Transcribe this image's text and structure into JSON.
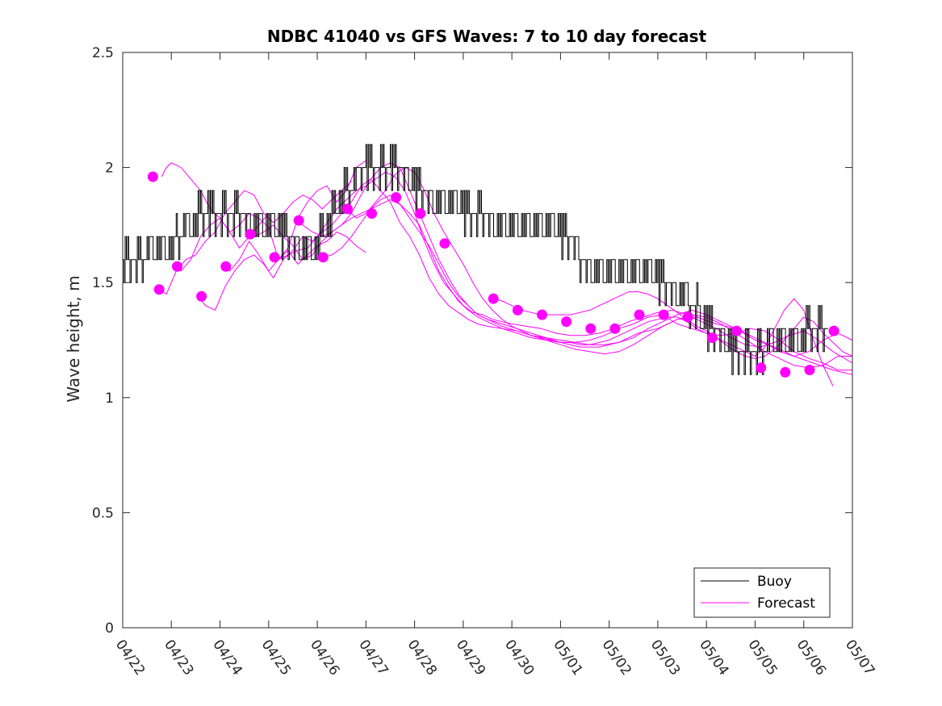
{
  "chart_data": {
    "type": "line",
    "title": "NDBC 41040 vs GFS Waves: 7 to 10 day forecast",
    "xlabel": "",
    "ylabel": "Wave height, m",
    "ylim": [
      0,
      2.5
    ],
    "yticks": [
      "0",
      "0.5",
      "1",
      "1.5",
      "2",
      "2.5"
    ],
    "xlim": [
      "04/22",
      "05/07"
    ],
    "xticks": [
      "04/22",
      "04/23",
      "04/24",
      "04/25",
      "04/26",
      "04/27",
      "04/28",
      "04/29",
      "04/30",
      "05/01",
      "05/02",
      "05/03",
      "05/04",
      "05/05",
      "05/06",
      "05/07"
    ],
    "x_unit": "days from 04/22 00:00",
    "grid": false,
    "legend_position": "bottom-right",
    "legend": [
      "Buoy",
      "Forecast"
    ],
    "colors": {
      "buoy": "#000000",
      "forecast": "#ff00ff",
      "axes": "#262626"
    },
    "buoy": {
      "name": "Buoy",
      "x": [
        0.0,
        0.25,
        0.5,
        0.75,
        1.0,
        1.25,
        1.5,
        1.75,
        2.0,
        2.25,
        2.5,
        2.75,
        3.0,
        3.25,
        3.5,
        3.75,
        4.0,
        4.25,
        4.5,
        4.75,
        5.0,
        5.25,
        5.5,
        5.75,
        6.0,
        6.25,
        6.5,
        6.75,
        7.0,
        7.25,
        7.5,
        7.75,
        8.0,
        8.25,
        8.5,
        8.75,
        9.0,
        9.25,
        9.5,
        9.75,
        10.0,
        10.25,
        10.5,
        10.75,
        11.0,
        11.25,
        11.5,
        11.75,
        12.0,
        12.25,
        12.5,
        12.75,
        13.0,
        13.25,
        13.5,
        13.75,
        14.0,
        14.25,
        14.5
      ],
      "y": [
        1.55,
        1.58,
        1.6,
        1.6,
        1.62,
        1.7,
        1.75,
        1.8,
        1.75,
        1.75,
        1.75,
        1.7,
        1.7,
        1.7,
        1.65,
        1.62,
        1.65,
        1.75,
        1.85,
        1.9,
        2.0,
        1.95,
        2.0,
        1.95,
        1.9,
        1.85,
        1.8,
        1.85,
        1.8,
        1.78,
        1.75,
        1.72,
        1.72,
        1.75,
        1.72,
        1.7,
        1.7,
        1.65,
        1.55,
        1.52,
        1.55,
        1.52,
        1.5,
        1.5,
        1.5,
        1.45,
        1.42,
        1.38,
        1.3,
        1.25,
        1.2,
        1.15,
        1.17,
        1.2,
        1.25,
        1.23,
        1.25,
        1.25,
        1.25
      ]
    },
    "forecast_runs": [
      {
        "x": [
          0.8,
          0.9,
          1.0,
          1.2,
          1.4,
          1.6,
          1.8,
          2.0,
          2.2,
          2.4,
          2.6,
          2.8,
          3.0
        ],
        "y": [
          1.96,
          2.0,
          2.02,
          2.0,
          1.95,
          1.9,
          1.82,
          1.78,
          1.72,
          1.65,
          1.7,
          1.75,
          1.8
        ]
      },
      {
        "x": [
          0.75,
          0.9,
          1.1,
          1.3,
          1.5,
          1.7,
          1.9,
          2.1,
          2.3,
          2.5,
          2.7,
          2.9,
          3.1,
          3.3,
          3.5,
          3.7,
          3.9,
          4.1,
          4.3,
          4.5,
          4.7
        ],
        "y": [
          1.47,
          1.45,
          1.55,
          1.6,
          1.62,
          1.68,
          1.72,
          1.8,
          1.85,
          1.9,
          1.88,
          1.8,
          1.76,
          1.8,
          1.85,
          1.88,
          1.86,
          1.82,
          1.86,
          1.9,
          1.94
        ]
      },
      {
        "x": [
          1.05,
          1.2,
          1.4,
          1.6,
          1.8,
          2.0,
          2.2,
          2.4,
          2.6,
          2.8,
          3.0,
          3.2,
          3.4,
          3.6,
          3.8,
          4.0,
          4.2,
          4.4,
          4.6,
          4.8,
          5.0
        ],
        "y": [
          1.57,
          1.55,
          1.6,
          1.7,
          1.75,
          1.78,
          1.72,
          1.75,
          1.8,
          1.78,
          1.74,
          1.6,
          1.65,
          1.78,
          1.85,
          1.9,
          1.92,
          1.85,
          1.9,
          2.0,
          2.03
        ]
      },
      {
        "x": [
          1.55,
          1.7,
          1.9,
          2.1,
          2.3,
          2.5,
          2.7,
          2.9,
          3.1,
          3.3,
          3.5,
          3.7,
          3.9,
          4.1,
          4.3,
          4.5,
          4.7,
          4.9,
          5.1,
          5.3,
          5.5,
          5.7,
          5.9,
          6.1,
          6.3,
          6.5,
          6.7,
          6.9,
          7.1,
          7.3,
          7.5,
          7.8,
          8.1,
          8.4,
          8.7,
          9.0,
          9.4,
          9.8,
          10.2,
          10.6,
          11.0,
          11.4,
          11.8,
          12.2,
          12.6,
          13.0,
          13.4,
          13.8,
          14.2,
          14.6,
          15.0
        ],
        "y": [
          1.44,
          1.4,
          1.38,
          1.48,
          1.55,
          1.6,
          1.62,
          1.58,
          1.52,
          1.6,
          1.64,
          1.7,
          1.68,
          1.72,
          1.75,
          1.8,
          1.85,
          1.92,
          1.95,
          1.9,
          1.85,
          1.76,
          1.7,
          1.62,
          1.52,
          1.45,
          1.4,
          1.37,
          1.34,
          1.32,
          1.31,
          1.3,
          1.29,
          1.27,
          1.26,
          1.24,
          1.22,
          1.22,
          1.24,
          1.28,
          1.3,
          1.34,
          1.35,
          1.32,
          1.3,
          1.25,
          1.22,
          1.18,
          1.15,
          1.12,
          1.1
        ]
      },
      {
        "x": [
          2.05,
          2.2,
          2.4,
          2.6,
          2.8,
          3.0,
          3.2,
          3.4,
          3.6,
          3.8,
          4.0,
          4.2,
          4.4,
          4.6,
          4.8,
          5.0
        ],
        "y": [
          1.57,
          1.55,
          1.6,
          1.68,
          1.62,
          1.55,
          1.6,
          1.64,
          1.58,
          1.62,
          1.66,
          1.68,
          1.72,
          1.7,
          1.66,
          1.63
        ]
      },
      {
        "x": [
          2.55,
          2.7,
          2.9,
          3.1,
          3.3,
          3.5,
          3.7,
          3.9,
          4.1,
          4.3,
          4.5,
          4.7,
          4.9,
          5.1,
          5.3,
          5.5,
          5.7,
          5.9,
          6.1,
          6.3,
          6.5,
          6.7,
          6.9,
          7.1,
          7.3,
          7.5,
          7.8,
          8.1,
          8.4,
          8.7,
          9.0,
          9.3,
          9.6,
          9.9,
          10.2,
          10.5,
          10.8,
          11.1,
          11.4,
          11.7,
          12.0,
          12.3,
          12.6,
          12.9,
          13.2,
          13.5,
          13.8,
          14.1,
          14.4,
          14.7,
          15.0
        ],
        "y": [
          1.71,
          1.7,
          1.72,
          1.75,
          1.7,
          1.66,
          1.6,
          1.62,
          1.68,
          1.72,
          1.75,
          1.78,
          1.8,
          1.82,
          1.84,
          1.86,
          1.84,
          1.8,
          1.75,
          1.65,
          1.55,
          1.48,
          1.42,
          1.38,
          1.35,
          1.33,
          1.3,
          1.28,
          1.26,
          1.25,
          1.24,
          1.24,
          1.25,
          1.27,
          1.3,
          1.32,
          1.35,
          1.36,
          1.32,
          1.3,
          1.28,
          1.27,
          1.28,
          1.3,
          1.29,
          1.25,
          1.2,
          1.17,
          1.15,
          1.12,
          1.12
        ]
      },
      {
        "x": [
          3.05,
          3.2,
          3.4,
          3.6,
          3.8,
          4.0,
          4.2,
          4.4,
          4.6,
          4.8,
          5.0,
          5.2,
          5.4,
          5.6,
          5.8,
          6.0,
          6.2,
          6.4,
          6.6,
          6.8,
          7.0,
          7.2,
          7.4,
          7.6,
          7.8,
          8.0,
          8.3,
          8.6,
          8.9,
          9.2,
          9.5,
          9.8,
          10.1,
          10.4,
          10.7,
          11.0,
          11.3,
          11.6,
          11.9,
          12.2,
          12.5,
          12.8,
          13.1,
          13.4,
          13.7,
          14.0,
          14.3,
          14.6,
          15.0
        ],
        "y": [
          1.61,
          1.6,
          1.62,
          1.64,
          1.65,
          1.7,
          1.76,
          1.82,
          1.86,
          1.9,
          1.92,
          1.95,
          1.98,
          1.96,
          1.9,
          1.8,
          1.68,
          1.58,
          1.5,
          1.45,
          1.4,
          1.37,
          1.36,
          1.34,
          1.33,
          1.32,
          1.31,
          1.3,
          1.28,
          1.27,
          1.27,
          1.28,
          1.3,
          1.33,
          1.35,
          1.37,
          1.38,
          1.36,
          1.33,
          1.3,
          1.26,
          1.23,
          1.22,
          1.24,
          1.27,
          1.29,
          1.25,
          1.2,
          1.15
        ]
      },
      {
        "x": [
          3.55,
          3.7,
          3.9,
          4.1,
          4.3,
          4.5,
          4.7,
          4.9,
          5.1,
          5.3,
          5.5,
          5.7,
          5.9,
          6.1,
          6.3,
          6.5,
          6.7,
          6.9,
          7.1,
          7.3,
          7.5,
          7.8,
          8.1,
          8.4,
          8.7,
          9.0,
          9.3,
          9.6,
          9.9,
          10.2,
          10.5,
          10.8,
          11.1,
          11.4,
          11.7,
          12.0,
          12.3,
          12.6,
          12.9,
          13.2,
          13.5,
          13.8,
          14.1,
          14.4,
          14.7,
          15.0
        ],
        "y": [
          1.77,
          1.75,
          1.72,
          1.7,
          1.72,
          1.75,
          1.8,
          1.88,
          1.95,
          2.0,
          2.02,
          2.0,
          1.9,
          1.8,
          1.7,
          1.6,
          1.52,
          1.45,
          1.4,
          1.36,
          1.34,
          1.32,
          1.3,
          1.28,
          1.26,
          1.25,
          1.24,
          1.23,
          1.23,
          1.24,
          1.26,
          1.3,
          1.33,
          1.36,
          1.38,
          1.36,
          1.33,
          1.3,
          1.27,
          1.24,
          1.2,
          1.18,
          1.2,
          1.25,
          1.28,
          1.25
        ]
      },
      {
        "x": [
          4.1,
          4.3,
          4.5,
          4.7,
          4.9,
          5.1,
          5.3,
          5.5,
          5.7,
          5.9,
          6.1,
          6.3,
          6.5,
          6.7,
          6.9,
          7.1,
          7.3,
          7.5,
          7.8,
          8.1,
          8.4,
          8.7,
          9.0,
          9.3,
          9.6,
          9.9,
          10.2,
          10.5,
          10.8,
          11.1,
          11.4,
          11.7,
          12.0,
          12.3,
          12.6,
          12.9,
          13.2,
          13.5,
          13.8,
          14.1,
          14.4,
          14.7,
          15.0
        ],
        "y": [
          1.61,
          1.62,
          1.65,
          1.7,
          1.76,
          1.82,
          1.86,
          1.88,
          1.84,
          1.78,
          1.72,
          1.66,
          1.58,
          1.5,
          1.44,
          1.4,
          1.36,
          1.34,
          1.31,
          1.29,
          1.27,
          1.25,
          1.23,
          1.21,
          1.2,
          1.19,
          1.2,
          1.23,
          1.27,
          1.31,
          1.34,
          1.36,
          1.35,
          1.32,
          1.28,
          1.24,
          1.2,
          1.17,
          1.14,
          1.13,
          1.14,
          1.18,
          1.18
        ]
      },
      {
        "x": [
          4.6,
          4.8,
          5.0,
          5.2,
          5.4,
          5.6,
          5.8,
          6.0,
          6.2,
          6.4,
          6.6,
          6.8,
          7.0,
          7.2,
          7.4,
          7.6,
          7.8,
          8.0,
          8.2,
          8.4,
          8.6,
          8.8,
          9.0,
          9.2,
          9.4,
          9.6,
          9.8,
          10.0,
          10.2,
          10.4,
          10.6,
          10.8,
          11.0,
          11.2,
          11.4,
          11.6,
          11.8,
          12.0,
          12.2,
          12.4,
          12.6,
          12.8,
          13.0,
          13.2,
          13.4,
          13.6,
          13.8,
          14.0,
          14.2,
          14.4,
          14.6,
          14.8,
          15.0
        ],
        "y": [
          1.82,
          1.78,
          1.8,
          1.85,
          1.9,
          1.97,
          2.0,
          1.98,
          1.9,
          1.8,
          1.72,
          1.65,
          1.58,
          1.5,
          1.43,
          1.38,
          1.34,
          1.31,
          1.29,
          1.27,
          1.26,
          1.25,
          1.24,
          1.24,
          1.23,
          1.23,
          1.24,
          1.25,
          1.27,
          1.29,
          1.31,
          1.33,
          1.34,
          1.35,
          1.35,
          1.33,
          1.3,
          1.28,
          1.26,
          1.23,
          1.2,
          1.18,
          1.17,
          1.18,
          1.21,
          1.25,
          1.3,
          1.35,
          1.33,
          1.28,
          1.24,
          1.2,
          1.18
        ]
      },
      {
        "x": [
          7.6,
          7.8,
          8.0,
          8.2,
          8.4,
          8.6,
          8.8,
          9.0,
          9.2,
          9.4,
          9.6,
          9.8,
          10.0,
          10.2,
          10.4,
          10.6,
          10.8,
          11.0,
          11.2,
          11.4,
          11.6,
          11.8,
          12.0,
          12.2,
          12.4,
          12.6,
          12.8,
          13.0,
          13.2,
          13.4,
          13.6,
          13.8,
          14.0,
          14.2,
          14.4,
          14.6
        ],
        "y": [
          1.43,
          1.42,
          1.4,
          1.38,
          1.37,
          1.36,
          1.36,
          1.36,
          1.36,
          1.37,
          1.38,
          1.4,
          1.42,
          1.44,
          1.46,
          1.46,
          1.45,
          1.43,
          1.4,
          1.37,
          1.34,
          1.31,
          1.29,
          1.26,
          1.24,
          1.22,
          1.2,
          1.18,
          1.22,
          1.3,
          1.38,
          1.43,
          1.38,
          1.25,
          1.14,
          1.05
        ]
      }
    ],
    "forecast_markers": {
      "name": "Forecast",
      "x": [
        0.62,
        0.75,
        1.12,
        1.62,
        2.12,
        2.62,
        3.12,
        3.62,
        4.12,
        4.62,
        5.12,
        5.62,
        6.12,
        6.62,
        7.62,
        8.12,
        8.62,
        9.12,
        9.62,
        10.12,
        10.62,
        11.12,
        11.62,
        12.12,
        12.62,
        13.12,
        13.62,
        14.12,
        14.62
      ],
      "y": [
        1.96,
        1.47,
        1.57,
        1.44,
        1.57,
        1.71,
        1.61,
        1.77,
        1.61,
        1.82,
        1.8,
        1.87,
        1.8,
        1.67,
        1.43,
        1.38,
        1.36,
        1.33,
        1.3,
        1.3,
        1.36,
        1.36,
        1.35,
        1.26,
        1.29,
        1.13,
        1.11,
        1.12,
        1.29
      ]
    }
  }
}
